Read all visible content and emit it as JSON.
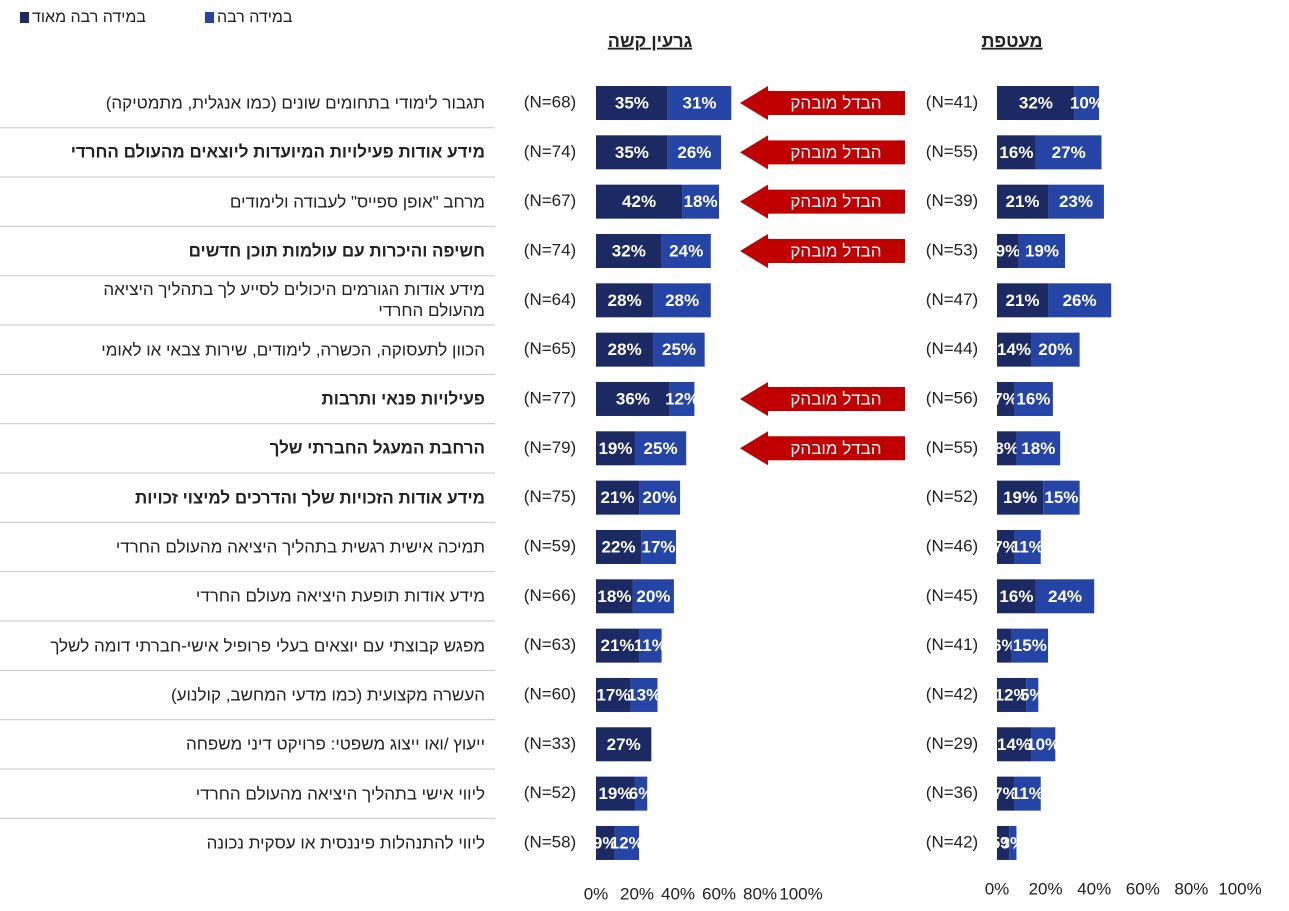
{
  "chart_data": [
    {
      "type": "bar",
      "orientation": "horizontal",
      "stacked": true,
      "title": "גרעין קשה",
      "categories": [
        "תגבור לימודי בתחומים שונים (כמו אנגלית, מתמטיקה)",
        "מידע אודות פעילויות המיועדות ליוצאים מהעולם החרדי",
        "מרחב \"אופן ספייס\" לעבודה ולימודים",
        "חשיפה והיכרות עם עולמות תוכן חדשים",
        "מידע אודות הגורמים היכולים לסייע לך בתהליך היציאה\nמהעולם החרדי",
        "הכוון לתעסוקה, הכשרה, לימודים, שירות צבאי או לאומי",
        "פעילויות פנאי ותרבות",
        "הרחבת המעגל החברתי שלך",
        "מידע אודות הזכויות שלך והדרכים למיצוי זכויות",
        "תמיכה אישית רגשית בתהליך היציאה מהעולם החרדי",
        "מידע אודות תופעת היציאה מעולם החרדי",
        "מפגש קבוצתי עם יוצאים בעלי פרופיל אישי-חברתי דומה לשלך",
        "העשרה מקצועית (כמו מדעי המחשב, קולנוע)",
        "ייעוץ /ואו ייצוג משפטי: פרויקט דיני משפחה",
        "ליווי אישי בתהליך היציאה מהעולם החרדי",
        "ליווי להתנהלות פיננסית או עסקית נכונה"
      ],
      "bold_categories": [
        false,
        true,
        false,
        true,
        false,
        false,
        true,
        true,
        true,
        false,
        false,
        false,
        false,
        false,
        false,
        false
      ],
      "significance": [
        "הבדל מובהק",
        "הבדל מובהק",
        "הבדל מובהק",
        "הבדל מובהק",
        null,
        null,
        "הבדל מובהק",
        "הבדל מובהק",
        null,
        null,
        null,
        null,
        null,
        null,
        null,
        null
      ],
      "n_labels": [
        "(N=68)",
        "(N=74)",
        "(N=67)",
        "(N=74)",
        "(N=64)",
        "(N=65)",
        "(N=77)",
        "(N=79)",
        "(N=75)",
        "(N=59)",
        "(N=66)",
        "(N=63)",
        "(N=60)",
        "(N=33)",
        "(N=52)",
        "(N=58)"
      ],
      "series": [
        {
          "name": "במידה רבה מאוד",
          "color": "#1b2a63",
          "values": [
            35,
            35,
            42,
            32,
            28,
            28,
            36,
            19,
            21,
            22,
            18,
            21,
            17,
            27,
            19,
            9
          ],
          "value_labels": [
            "35%",
            "35%",
            "42%",
            "32%",
            "28%",
            "28%",
            "36%",
            "19%",
            "21%",
            "22%",
            "18%",
            "21%",
            "17%",
            "27%",
            "19%",
            "9%"
          ]
        },
        {
          "name": "במידה רבה",
          "color": "#2444a6",
          "values": [
            31,
            26,
            18,
            24,
            28,
            25,
            12,
            25,
            20,
            17,
            20,
            11,
            13,
            null,
            6,
            12
          ],
          "value_labels": [
            "31%",
            "26%",
            "18%",
            "24%",
            "28%",
            "25%",
            "12%",
            "25%",
            "20%",
            "17%",
            "20%",
            "11%",
            "13%",
            null,
            "6%",
            "12%"
          ]
        }
      ],
      "xlim": [
        0,
        100
      ],
      "xticks": [
        {
          "value": 0,
          "label": "0%"
        },
        {
          "value": 20,
          "label": "20%"
        },
        {
          "value": 40,
          "label": "40%"
        },
        {
          "value": 60,
          "label": "60%"
        },
        {
          "value": 80,
          "label": "80%"
        },
        {
          "value": 100,
          "label": "100%"
        }
      ]
    },
    {
      "type": "bar",
      "orientation": "horizontal",
      "stacked": true,
      "title": "מעטפת",
      "n_labels": [
        "(N=41)",
        "(N=55)",
        "(N=39)",
        "(N=53)",
        "(N=47)",
        "(N=44)",
        "(N=56)",
        "(N=55)",
        "(N=52)",
        "(N=46)",
        "(N=45)",
        "(N=41)",
        "(N=42)",
        "(N=29)",
        "(N=36)",
        "(N=42)"
      ],
      "series": [
        {
          "color": "#1b2a63",
          "values": [
            32,
            16,
            21,
            9,
            21,
            14,
            7,
            8,
            19,
            7,
            16,
            6,
            12,
            14,
            7,
            5
          ],
          "value_labels": [
            "32%",
            "16%",
            "21%",
            "9%",
            "21%",
            "14%",
            "7%",
            "8%",
            "19%",
            "7%",
            "16%",
            "6%",
            "12%",
            "14%",
            "7%",
            "5%"
          ]
        },
        {
          "color": "#2444a6",
          "values": [
            10,
            27,
            23,
            19,
            26,
            20,
            16,
            18,
            15,
            11,
            24,
            15,
            5,
            10,
            11,
            3
          ],
          "value_labels": [
            "10%",
            "27%",
            "23%",
            "19%",
            "26%",
            "20%",
            "16%",
            "18%",
            "15%",
            "11%",
            "24%",
            "15%",
            "5%",
            "10%",
            "11%",
            "3%"
          ]
        }
      ],
      "xlim": [
        0,
        100
      ],
      "xticks": [
        {
          "value": 0,
          "label": "0%"
        },
        {
          "value": 20,
          "label": "20%"
        },
        {
          "value": 40,
          "label": "40%"
        },
        {
          "value": 60,
          "label": "60%"
        },
        {
          "value": 80,
          "label": "80%"
        },
        {
          "value": 100,
          "label": "100%"
        }
      ]
    }
  ]
}
